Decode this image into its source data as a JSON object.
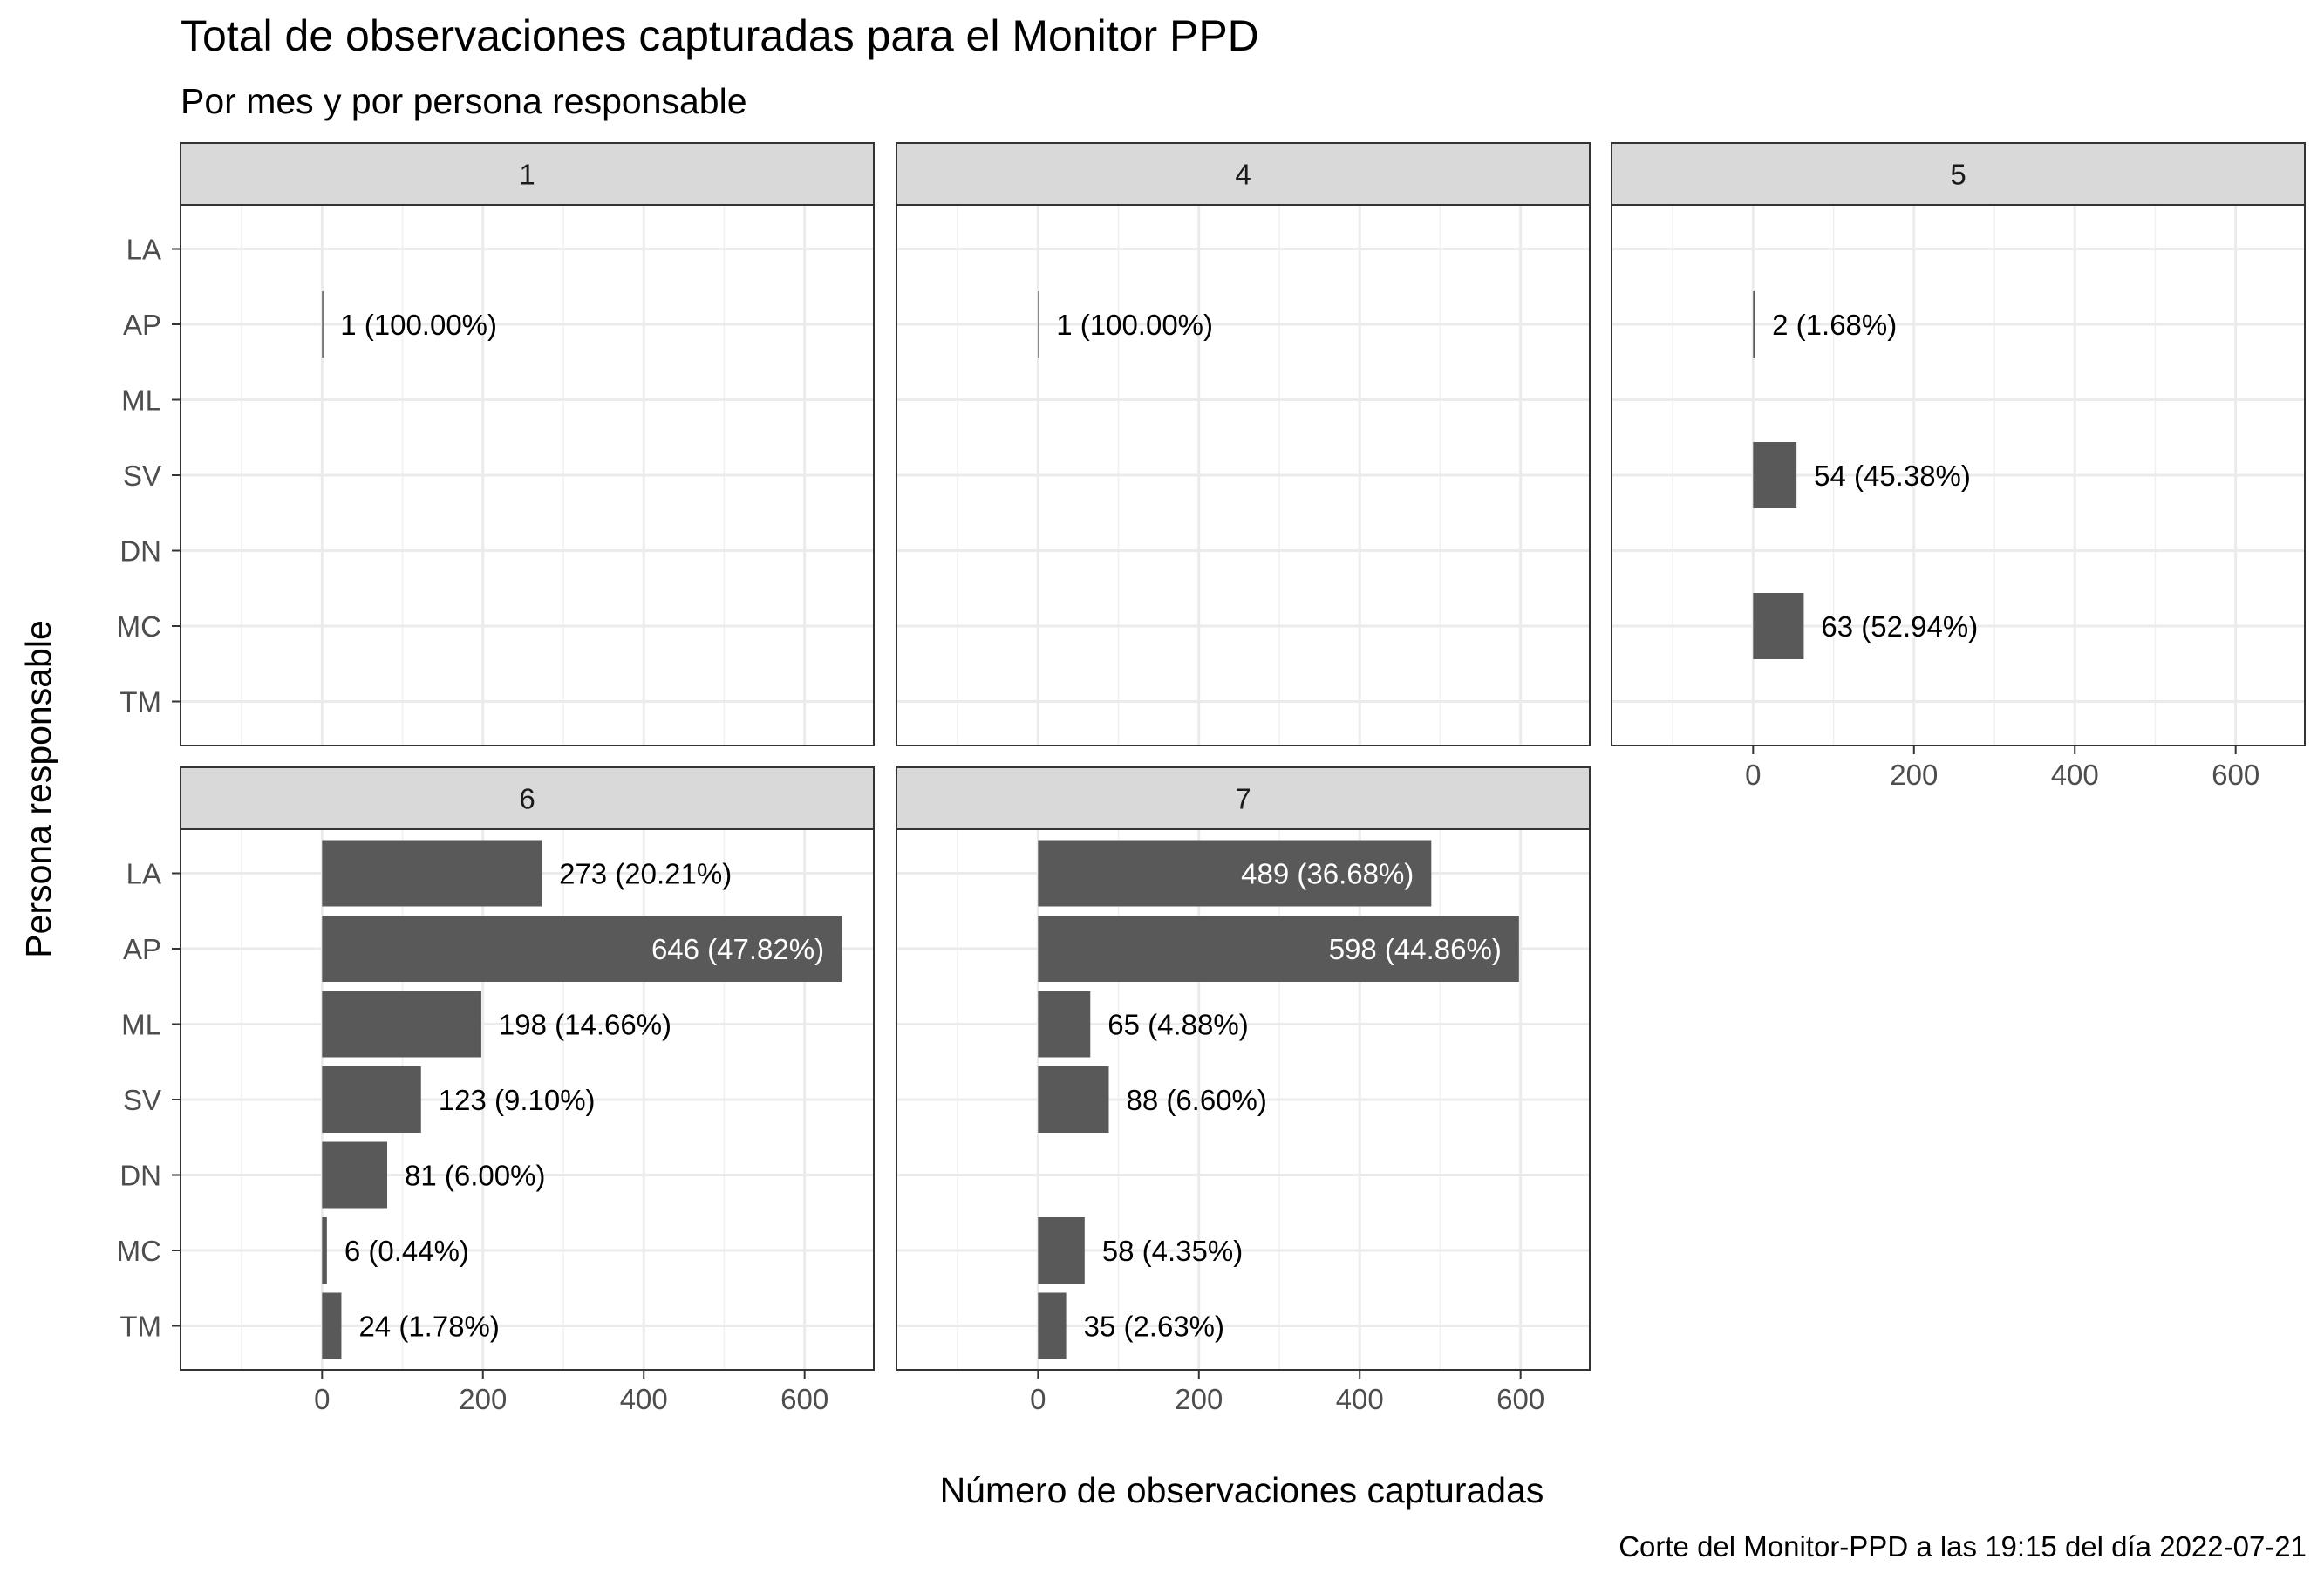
{
  "chart_data": {
    "type": "bar",
    "orientation": "horizontal",
    "title": "Total de observaciones capturadas para el Monitor PPD",
    "subtitle": "Por mes y por persona responsable",
    "xlabel": "Número de observaciones capturadas",
    "ylabel": "Persona responsable",
    "caption": "Corte del Monitor-PPD a las 19:15 del día 2022-07-21",
    "categories": [
      "LA",
      "AP",
      "ML",
      "SV",
      "DN",
      "MC",
      "TM"
    ],
    "xlim": [
      -176,
      686
    ],
    "xticks": [
      0,
      200,
      400,
      600
    ],
    "grid": true,
    "legend": "none",
    "bar_color": "#595959",
    "facets": [
      {
        "label": "1",
        "bars": [
          {
            "category": "AP",
            "value": 1,
            "label": "1 (100.00%)"
          }
        ]
      },
      {
        "label": "4",
        "bars": [
          {
            "category": "AP",
            "value": 1,
            "label": "1 (100.00%)"
          }
        ]
      },
      {
        "label": "5",
        "bars": [
          {
            "category": "AP",
            "value": 2,
            "label": "2 (1.68%)"
          },
          {
            "category": "SV",
            "value": 54,
            "label": "54 (45.38%)"
          },
          {
            "category": "MC",
            "value": 63,
            "label": "63 (52.94%)"
          }
        ]
      },
      {
        "label": "6",
        "bars": [
          {
            "category": "LA",
            "value": 273,
            "label": "273 (20.21%)"
          },
          {
            "category": "AP",
            "value": 646,
            "label": "646 (47.82%)"
          },
          {
            "category": "ML",
            "value": 198,
            "label": "198 (14.66%)"
          },
          {
            "category": "SV",
            "value": 123,
            "label": "123 (9.10%)"
          },
          {
            "category": "DN",
            "value": 81,
            "label": "81 (6.00%)"
          },
          {
            "category": "MC",
            "value": 6,
            "label": "6 (0.44%)"
          },
          {
            "category": "TM",
            "value": 24,
            "label": "24 (1.78%)"
          }
        ]
      },
      {
        "label": "7",
        "bars": [
          {
            "category": "LA",
            "value": 489,
            "label": "489 (36.68%)"
          },
          {
            "category": "AP",
            "value": 598,
            "label": "598 (44.86%)"
          },
          {
            "category": "ML",
            "value": 65,
            "label": "65 (4.88%)"
          },
          {
            "category": "SV",
            "value": 88,
            "label": "88 (6.60%)"
          },
          {
            "category": "MC",
            "value": 58,
            "label": "58 (4.35%)"
          },
          {
            "category": "TM",
            "value": 35,
            "label": "35 (2.63%)"
          }
        ]
      }
    ]
  }
}
